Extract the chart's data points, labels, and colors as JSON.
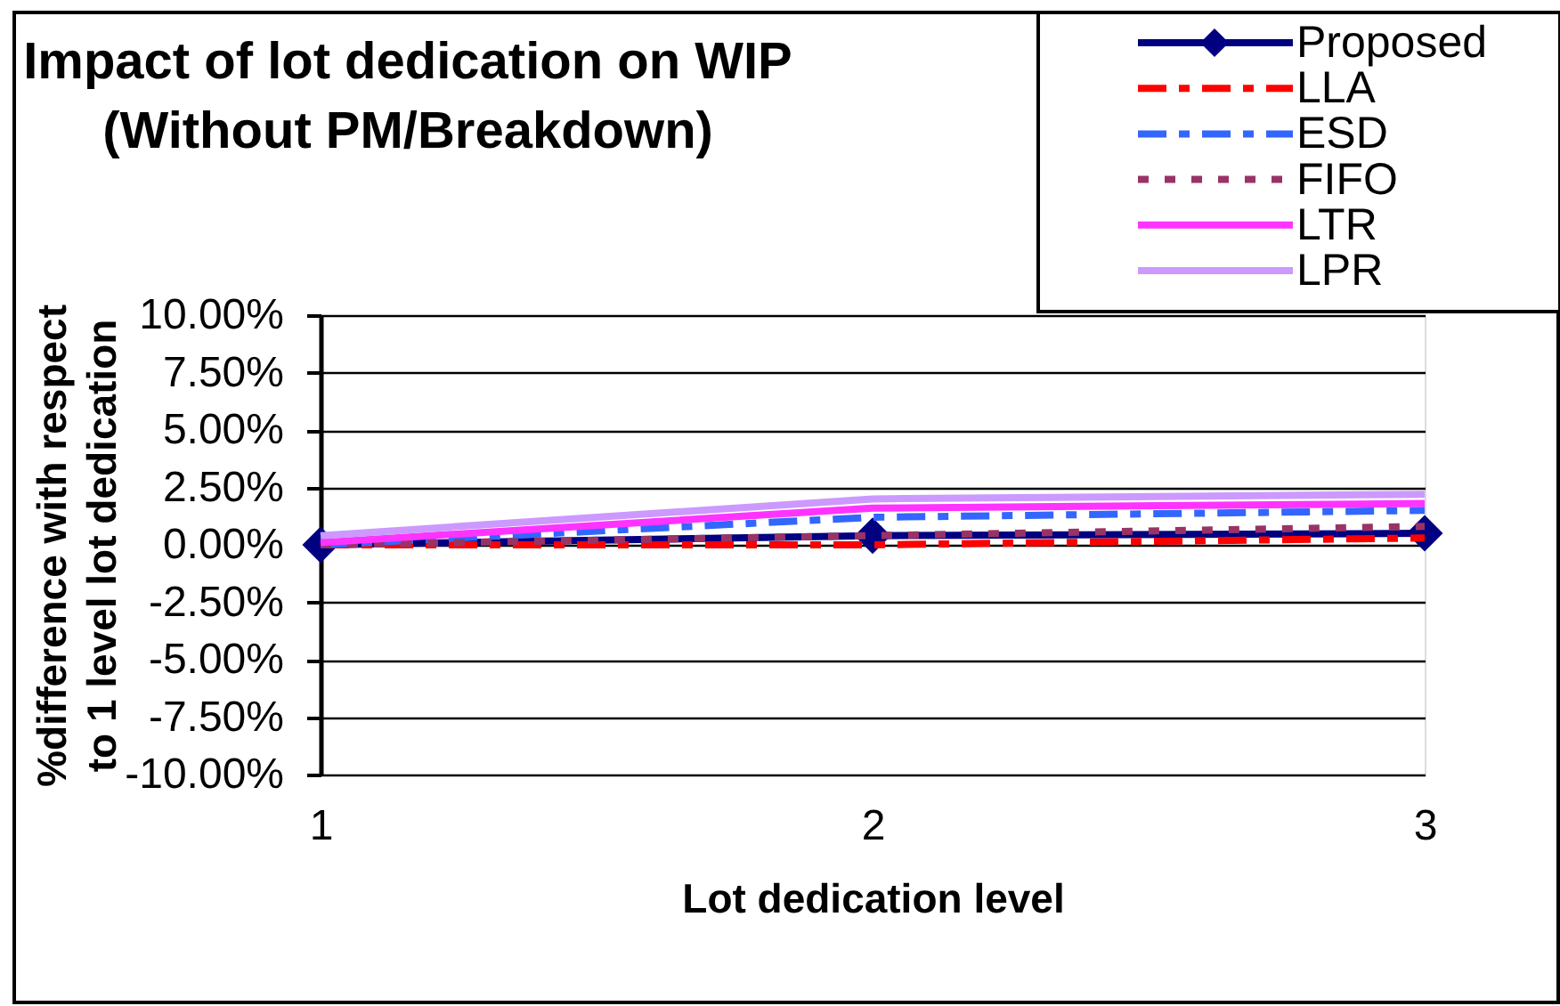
{
  "chart_data": {
    "type": "line",
    "title": "Impact of lot dedication on WIP\n(Without PM/Breakdown)",
    "xlabel": "Lot dedication level",
    "ylabel": "%difference with respect\nto 1 level lot dedication",
    "x": [
      1,
      2,
      3
    ],
    "xlim": [
      1,
      3
    ],
    "xticks": [
      1,
      2,
      3
    ],
    "ylim": [
      -10,
      10
    ],
    "yticks": [
      {
        "value": -10,
        "label": "-10.00%"
      },
      {
        "value": -7.5,
        "label": "-7.50%"
      },
      {
        "value": -5,
        "label": "-5.00%"
      },
      {
        "value": -2.5,
        "label": "-2.50%"
      },
      {
        "value": 0,
        "label": "0.00%"
      },
      {
        "value": 2.5,
        "label": "2.50%"
      },
      {
        "value": 5,
        "label": "5.00%"
      },
      {
        "value": 7.5,
        "label": "7.50%"
      },
      {
        "value": 10,
        "label": "10.00%"
      }
    ],
    "grid": "y",
    "legend": "top right",
    "series": [
      {
        "name": "Proposed",
        "color": "#000080",
        "values": [
          0,
          0.4,
          0.5
        ],
        "marker": "diamond",
        "line_style": "solid"
      },
      {
        "name": "LLA",
        "color": "#ff0000",
        "values": [
          0,
          0,
          0.3
        ],
        "marker": "none",
        "line_style": "dashed"
      },
      {
        "name": "ESD",
        "color": "#3366ff",
        "values": [
          0,
          1.2,
          1.5
        ],
        "marker": "none",
        "line_style": "dashed"
      },
      {
        "name": "FIFO",
        "color": "#993366",
        "values": [
          0,
          0.4,
          0.8
        ],
        "marker": "none",
        "line_style": "dotted"
      },
      {
        "name": "LTR",
        "color": "#ff33ff",
        "values": [
          0.1,
          1.6,
          1.8
        ],
        "marker": "none",
        "line_style": "solid"
      },
      {
        "name": "LPR",
        "color": "#cc99ff",
        "values": [
          0.4,
          2.0,
          2.2
        ],
        "marker": "none",
        "line_style": "solid"
      }
    ]
  }
}
